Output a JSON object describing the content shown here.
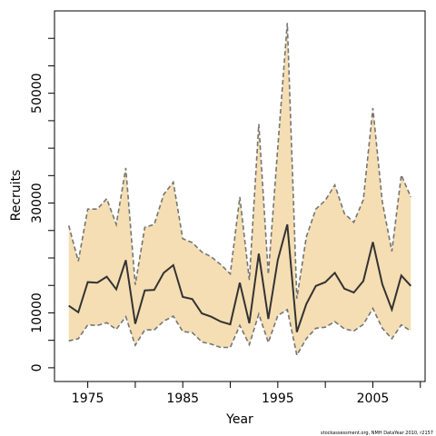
{
  "chart_data": {
    "type": "area",
    "xlabel": "Year",
    "ylabel": "Recruits",
    "xlim": [
      1971.5,
      2010.5
    ],
    "ylim": [
      -2500,
      65000
    ],
    "x_ticks": [
      1975,
      1980,
      1985,
      1990,
      1995,
      2000,
      2005,
      2010
    ],
    "x_tick_labels": [
      "1975",
      "",
      "1985",
      "",
      "1995",
      "",
      "2005",
      ""
    ],
    "y_ticks": [
      0,
      5000,
      10000,
      15000,
      20000,
      25000,
      30000,
      35000,
      40000,
      45000,
      50000,
      55000,
      60000
    ],
    "y_tick_labels": [
      "0",
      "",
      "10000",
      "",
      "",
      "",
      "30000",
      "",
      "",
      "",
      "50000",
      "",
      ""
    ],
    "grid": false,
    "x": [
      1973,
      1974,
      1975,
      1976,
      1977,
      1978,
      1979,
      1980,
      1981,
      1982,
      1983,
      1984,
      1985,
      1986,
      1987,
      1988,
      1989,
      1990,
      1991,
      1992,
      1993,
      1994,
      1995,
      1996,
      1997,
      1998,
      1999,
      2000,
      2001,
      2002,
      2003,
      2004,
      2005,
      2006,
      2007,
      2008,
      2009
    ],
    "series": [
      {
        "role": "estimate",
        "values": [
          11300,
          10100,
          15600,
          15500,
          16600,
          14300,
          19600,
          8000,
          14100,
          14200,
          17300,
          18700,
          12900,
          12500,
          9900,
          9300,
          8400,
          7900,
          15500,
          8100,
          20800,
          8900,
          19600,
          26100,
          6500,
          11600,
          14900,
          15600,
          17300,
          14400,
          13700,
          15800,
          22900,
          15200,
          10600,
          16800,
          14900
        ]
      },
      {
        "role": "upper",
        "values": [
          25900,
          19400,
          28900,
          28900,
          30800,
          26100,
          36400,
          15100,
          25600,
          26100,
          31600,
          33800,
          23500,
          22800,
          21100,
          20200,
          18800,
          17100,
          31100,
          16000,
          44400,
          17000,
          40100,
          62800,
          12600,
          23800,
          28900,
          30500,
          33300,
          28100,
          26500,
          30600,
          47300,
          30200,
          21200,
          35100,
          31100
        ]
      },
      {
        "role": "lower",
        "values": [
          4900,
          5300,
          7800,
          7700,
          8200,
          7000,
          9300,
          4100,
          6900,
          6900,
          8500,
          9400,
          6600,
          6400,
          4700,
          4300,
          3700,
          3700,
          7700,
          4200,
          9800,
          4600,
          9500,
          10600,
          2300,
          5300,
          7200,
          7400,
          8400,
          7100,
          6700,
          7900,
          10800,
          7200,
          5300,
          7800,
          6700
        ]
      }
    ],
    "band_fill": "#f5deb3",
    "band_edge_color": "#757575",
    "line_color": "#333333"
  },
  "footer": {
    "note": "stockassessment.org, NMH  DataYear  2010, r2157"
  }
}
